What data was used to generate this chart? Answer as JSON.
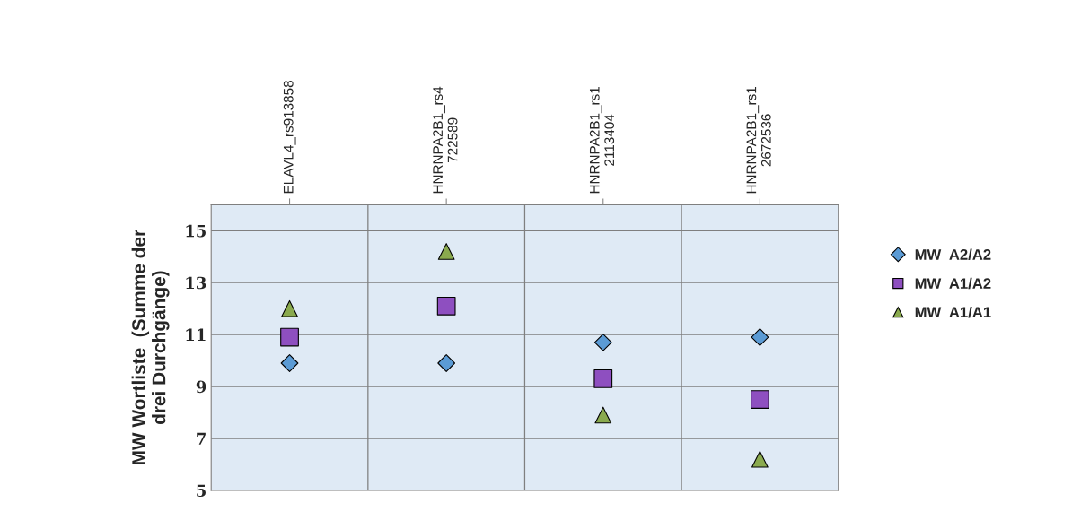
{
  "chart_data": {
    "type": "scatter",
    "ylabel": "MW Wortliste  (Summe der\ndrei Durchgänge)",
    "categories": [
      "ELAVL4_rs913858",
      "HNRNPA2B1_rs4\n722589",
      "HNRNPA2B1_rs1\n2113404",
      "HNRNPA2B1_rs1\n2672536"
    ],
    "series": [
      {
        "name": "MW  A2/A2",
        "color": "#5b9bd5",
        "marker": "diamond",
        "values": [
          9.9,
          9.9,
          10.7,
          10.9
        ]
      },
      {
        "name": "MW  A1/A2",
        "color": "#8e4fc0",
        "marker": "square",
        "values": [
          10.9,
          12.1,
          9.3,
          8.5
        ]
      },
      {
        "name": "MW  A1/A1",
        "color": "#8aaa4e",
        "marker": "triangle",
        "values": [
          12.0,
          14.2,
          7.9,
          6.2
        ]
      }
    ],
    "ylim": [
      5,
      16
    ],
    "yticks": [
      5,
      7,
      9,
      11,
      13,
      15
    ],
    "grid": true,
    "legend": "right"
  }
}
